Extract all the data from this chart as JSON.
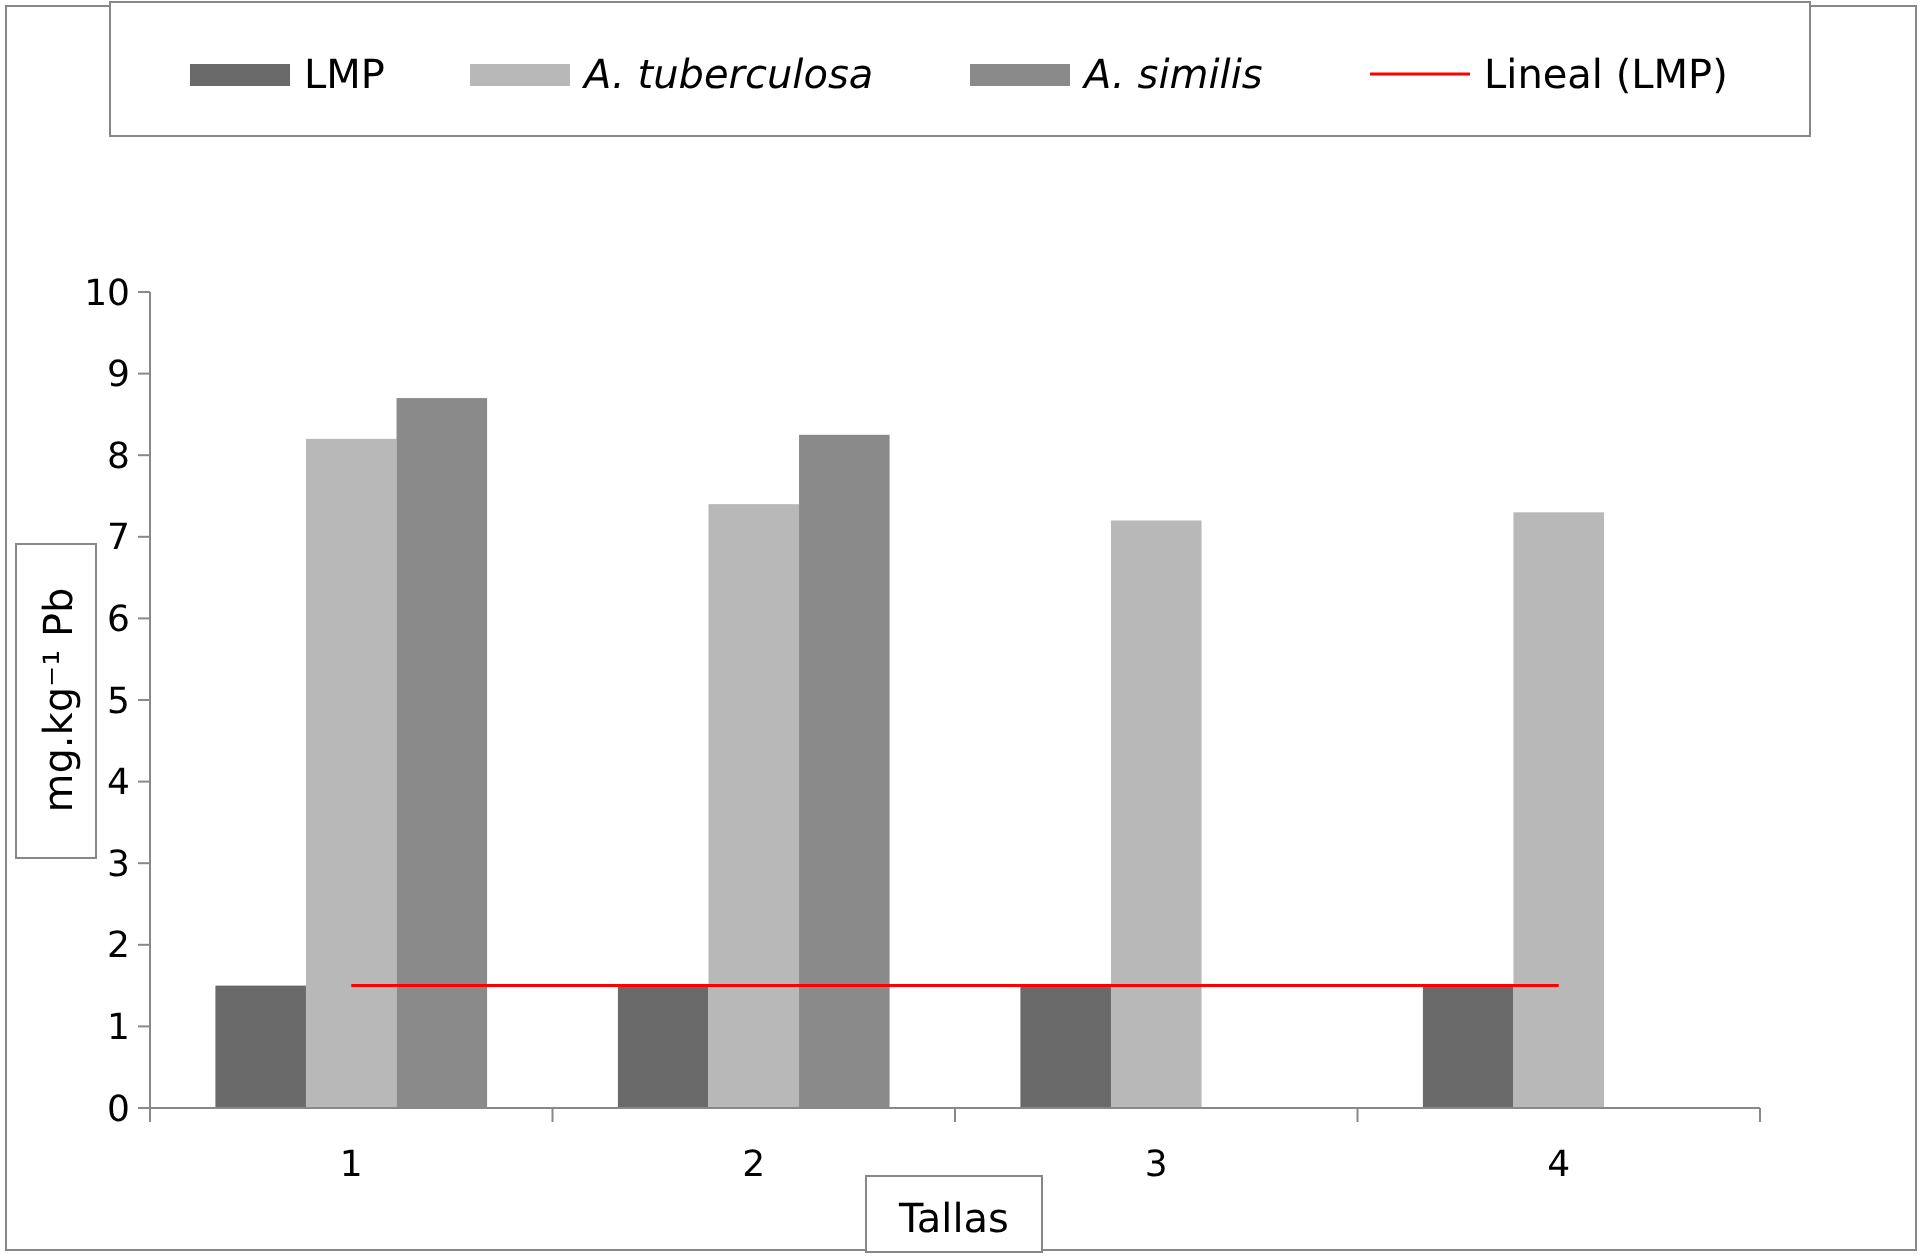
{
  "chart_data": {
    "type": "bar",
    "xlabel": "Tallas",
    "ylabel": "mg.kg⁻¹ Pb",
    "categories": [
      "1",
      "2",
      "3",
      "4"
    ],
    "series": [
      {
        "name": "LMP",
        "color": "#696969",
        "values": [
          1.5,
          1.5,
          1.5,
          1.5
        ]
      },
      {
        "name": "A. tuberculosa",
        "color": "#b8b8b8",
        "values": [
          8.2,
          7.4,
          7.2,
          7.3
        ]
      },
      {
        "name": "A. similis",
        "color": "#8a8a8a",
        "values": [
          8.7,
          8.25,
          null,
          null
        ]
      },
      {
        "name": "Lineal (LMP)",
        "type": "line",
        "color": "#ff0000",
        "values": [
          1.5,
          1.5,
          1.5,
          1.5
        ]
      }
    ],
    "ylim": [
      0,
      10
    ],
    "yticks": [
      0,
      1,
      2,
      3,
      4,
      5,
      6,
      7,
      8,
      9,
      10
    ],
    "grid": false,
    "legend": "top",
    "line_style": "solid"
  }
}
